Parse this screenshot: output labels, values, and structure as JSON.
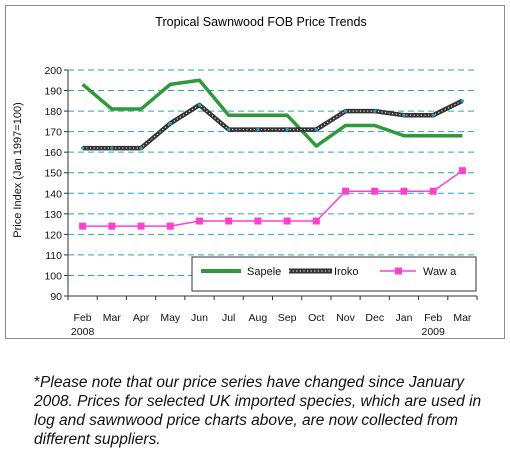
{
  "chart_data": {
    "type": "line",
    "title": "Tropical Sawnwood FOB Price Trends",
    "ylabel": "Price Index (Jan 1997=100)",
    "xlabel": "",
    "categories": [
      "Feb",
      "Mar",
      "Apr",
      "May",
      "Jun",
      "Jul",
      "Aug",
      "Sep",
      "Oct",
      "Nov",
      "Dec",
      "Jan",
      "Feb",
      "Mar"
    ],
    "year_labels": [
      {
        "index": 0,
        "text": "2008"
      },
      {
        "index": 12,
        "text": "2009"
      }
    ],
    "ylim": [
      90,
      200
    ],
    "yticks": [
      90,
      100,
      110,
      120,
      130,
      140,
      150,
      160,
      170,
      180,
      190,
      200
    ],
    "grid": "horizontal dashed",
    "legend_position": "bottom-right inside",
    "series": [
      {
        "name": "Sapele",
        "color": "#2e9a3a",
        "style": "thick",
        "values": [
          193,
          181,
          181,
          193,
          195,
          178,
          178,
          178,
          163,
          173,
          173,
          168,
          168,
          168
        ]
      },
      {
        "name": "Iroko",
        "color": "#333333",
        "style": "thick dotted",
        "values": [
          162,
          162,
          162,
          174,
          183,
          171,
          171,
          171,
          171,
          180,
          180,
          178,
          178,
          185
        ]
      },
      {
        "name": "Wawa",
        "color": "#ff3fd2",
        "style": "thin with square markers",
        "values": [
          124,
          124,
          124,
          124,
          126.5,
          126.5,
          126.5,
          126.5,
          126.5,
          141,
          141,
          141,
          141,
          151
        ]
      }
    ]
  },
  "legend": {
    "sapele": "Sapele",
    "iroko": "Iroko",
    "wawa": "Waw a"
  },
  "footnote": {
    "asterisk": "*",
    "text": "Please note that our price series have changed since January 2008. Prices for selected UK imported species, which are used in log and sawnwood price charts above, are now collected from different suppliers."
  },
  "colors": {
    "grid": "#2aa3bf",
    "sapele": "#2e9a3a",
    "iroko": "#333333",
    "iroko_dots": "#e0e0e0",
    "wawa": "#ff3fd2",
    "marker_center": "#2aa3bf"
  }
}
